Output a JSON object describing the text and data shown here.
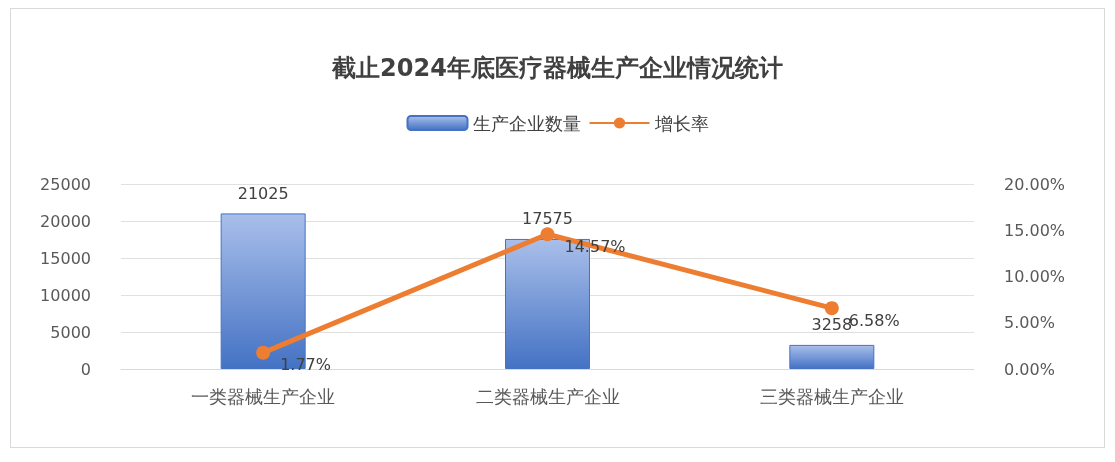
{
  "chart_data": {
    "type": "bar",
    "title": "截止2024年底医疗器械生产企业情况统计",
    "categories": [
      "一类器械生产企业",
      "二类器械生产企业",
      "三类器械生产企业"
    ],
    "series": [
      {
        "name": "生产企业数量",
        "color": "#4472c4",
        "values": [
          21025,
          17575,
          3258
        ],
        "value_labels": [
          "21025",
          "17575",
          "3258"
        ]
      },
      {
        "name": "增长率",
        "type": "line",
        "axis": "y2",
        "color": "#ed7d31",
        "values": [
          1.77,
          14.57,
          6.58
        ],
        "value_labels": [
          "1.77%",
          "14.57%",
          "6.58%"
        ]
      }
    ],
    "ylim": [
      0,
      25000
    ],
    "yticks": [
      0,
      5000,
      10000,
      15000,
      20000,
      25000
    ],
    "y2lim": [
      0,
      20
    ],
    "y2ticks": [
      {
        "value": 0,
        "label": "0.00%"
      },
      {
        "value": 5,
        "label": "5.00%"
      },
      {
        "value": 10,
        "label": "10.00%"
      },
      {
        "value": 15,
        "label": "15.00%"
      },
      {
        "value": 20,
        "label": "20.00%"
      }
    ],
    "grid": "y",
    "legend": "top",
    "marker": "circle",
    "line_style": "solid"
  }
}
